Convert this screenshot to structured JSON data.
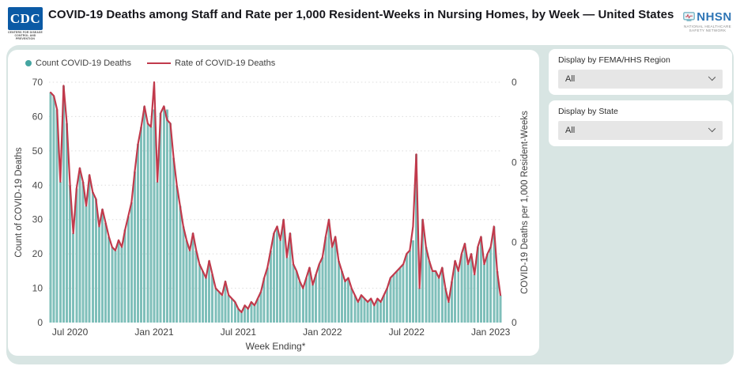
{
  "header": {
    "title": "COVID-19 Deaths among Staff and Rate per 1,000 Resident-Weeks in Nursing Homes, by Week — United States",
    "cdc_logo_text": "CDC",
    "cdc_logo_sub": "CENTERS FOR DISEASE CONTROL AND PREVENTION",
    "nhsn_logo_text": "NHSN",
    "nhsn_logo_sub": "NATIONAL HEALTHCARE SAFETY NETWORK"
  },
  "filters": {
    "region": {
      "label": "Display by FEMA/HHS Region",
      "value": "All"
    },
    "state": {
      "label": "Display by State",
      "value": "All"
    }
  },
  "chart_data": {
    "type": "bar+line",
    "title": "COVID-19 Deaths among Staff and Rate per 1,000 Resident-Weeks in Nursing Homes, by Week — United States",
    "xlabel": "Week Ending*",
    "ylabel_left": "Count of COVID-19 Deaths",
    "ylabel_right": "COVID-19 Deaths per 1,000 Resident-Weeks",
    "ylim_left": [
      0,
      70
    ],
    "y_left_ticks": [
      0,
      10,
      20,
      30,
      40,
      50,
      60,
      70
    ],
    "y_right_tick_labels": [
      "0",
      "0",
      "0",
      "0"
    ],
    "x_tick_labels": [
      "Jul 2020",
      "Jan 2021",
      "Jul 2021",
      "Jan 2022",
      "Jul 2022",
      "Jan 2023"
    ],
    "x_tick_week_indices": [
      6,
      32,
      58,
      84,
      110,
      136
    ],
    "grid": "horizontal dotted",
    "legend_position": "top-left",
    "legend": [
      {
        "label": "Count COVID-19 Deaths",
        "color": "#45a5a1",
        "type": "dot"
      },
      {
        "label": "Rate of COVID-19 Deaths",
        "color": "#c13a4c",
        "type": "line"
      }
    ],
    "series": [
      {
        "name": "Count COVID-19 Deaths",
        "type": "bar",
        "axis": "left",
        "color": "#7fbfba",
        "values": [
          67,
          66,
          62,
          41,
          69,
          58,
          40,
          26,
          39,
          45,
          41,
          34,
          43,
          38,
          36,
          28,
          33,
          29,
          25,
          22,
          21,
          24,
          22,
          27,
          31,
          35,
          44,
          52,
          57,
          63,
          58,
          57,
          62,
          41,
          61,
          63,
          62,
          58,
          48,
          40,
          34,
          28,
          24,
          21,
          26,
          21,
          17,
          15,
          13,
          18,
          14,
          10,
          9,
          8,
          12,
          8,
          7,
          6,
          4,
          3,
          5,
          4,
          6,
          5,
          7,
          9,
          13,
          16,
          21,
          26,
          28,
          24,
          30,
          19,
          26,
          17,
          15,
          12,
          10,
          13,
          16,
          11,
          14,
          17,
          19,
          25,
          30,
          22,
          25,
          18,
          15,
          12,
          13,
          10,
          8,
          6,
          8,
          7,
          6,
          7,
          5,
          7,
          6,
          8,
          10,
          13,
          14,
          15,
          16,
          17,
          20,
          21,
          24,
          49,
          10,
          30,
          22,
          18,
          15,
          15,
          13,
          16,
          10,
          6,
          12,
          18,
          15,
          20,
          23,
          17,
          20,
          14,
          22,
          25,
          17,
          20,
          22,
          28,
          15,
          8
        ]
      },
      {
        "name": "Rate of COVID-19 Deaths",
        "type": "line",
        "axis": "right",
        "color": "#c13a4c",
        "values": [
          67,
          66,
          62,
          41,
          69,
          58,
          40,
          26,
          39,
          45,
          41,
          34,
          43,
          38,
          36,
          28,
          33,
          29,
          25,
          22,
          21,
          24,
          22,
          27,
          31,
          35,
          44,
          52,
          57,
          63,
          58,
          57,
          70,
          41,
          61,
          63,
          59,
          58,
          48,
          40,
          34,
          28,
          24,
          21,
          26,
          21,
          17,
          15,
          13,
          18,
          14,
          10,
          9,
          8,
          12,
          8,
          7,
          6,
          4,
          3,
          5,
          4,
          6,
          5,
          7,
          9,
          13,
          16,
          21,
          26,
          28,
          24,
          30,
          19,
          26,
          17,
          15,
          12,
          10,
          13,
          16,
          11,
          14,
          17,
          19,
          25,
          30,
          22,
          25,
          18,
          15,
          12,
          13,
          10,
          8,
          6,
          8,
          7,
          6,
          7,
          5,
          7,
          6,
          8,
          10,
          13,
          14,
          15,
          16,
          17,
          20,
          21,
          28,
          49,
          10,
          30,
          22,
          18,
          15,
          15,
          13,
          16,
          10,
          6,
          12,
          18,
          15,
          20,
          23,
          17,
          20,
          14,
          22,
          25,
          17,
          20,
          22,
          28,
          15,
          8
        ]
      }
    ]
  },
  "colors": {
    "canvas_bg": "#d8e5e3",
    "card_bg": "#ffffff",
    "bar": "#7fbfba",
    "line": "#c13a4c",
    "gridline": "#dcdcdc",
    "axis_text": "#4a4a4a",
    "cdc_blue": "#0b5aa5",
    "nhsn_blue": "#2e75b5",
    "select_bg": "#e6e6e6"
  }
}
